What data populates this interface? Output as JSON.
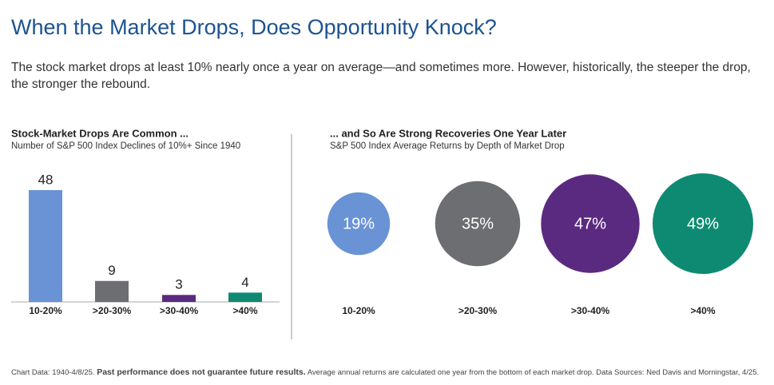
{
  "header": {
    "title": "When the Market Drops, Does Opportunity Knock?",
    "subtitle": "The stock market drops at least 10% nearly once a year on average—and sometimes more. However, historically, the steeper the drop, the stronger the rebound."
  },
  "chart_data": [
    {
      "type": "bar",
      "title": "Stock-Market Drops Are Common ...",
      "subtitle": "Number of S&P 500 Index Declines of 10%+ Since 1940",
      "categories": [
        "10-20%",
        ">20-30%",
        ">30-40%",
        ">40%"
      ],
      "values": [
        48,
        9,
        3,
        4
      ],
      "colors": [
        "#6a93d6",
        "#6d6e71",
        "#5a2a80",
        "#0f8a72"
      ]
    },
    {
      "type": "bubble",
      "title": "... and So Are Strong Recoveries One Year Later",
      "subtitle": "S&P 500 Index Average Returns by Depth of Market Drop",
      "categories": [
        "10-20%",
        ">20-30%",
        ">30-40%",
        ">40%"
      ],
      "values": [
        19,
        35,
        47,
        49
      ],
      "value_labels": [
        "19%",
        "35%",
        "47%",
        "49%"
      ],
      "colors": [
        "#6a93d6",
        "#6d6e71",
        "#5a2a80",
        "#0f8a72"
      ]
    }
  ],
  "footnote": {
    "part1": "Chart Data: 1940-4/8/25.",
    "part2": "Past performance does not guarantee future results.",
    "part3": "Average annual returns are calculated one year from the bottom of each market drop. Data Sources: Ned Davis and Morningstar, 4/25."
  }
}
